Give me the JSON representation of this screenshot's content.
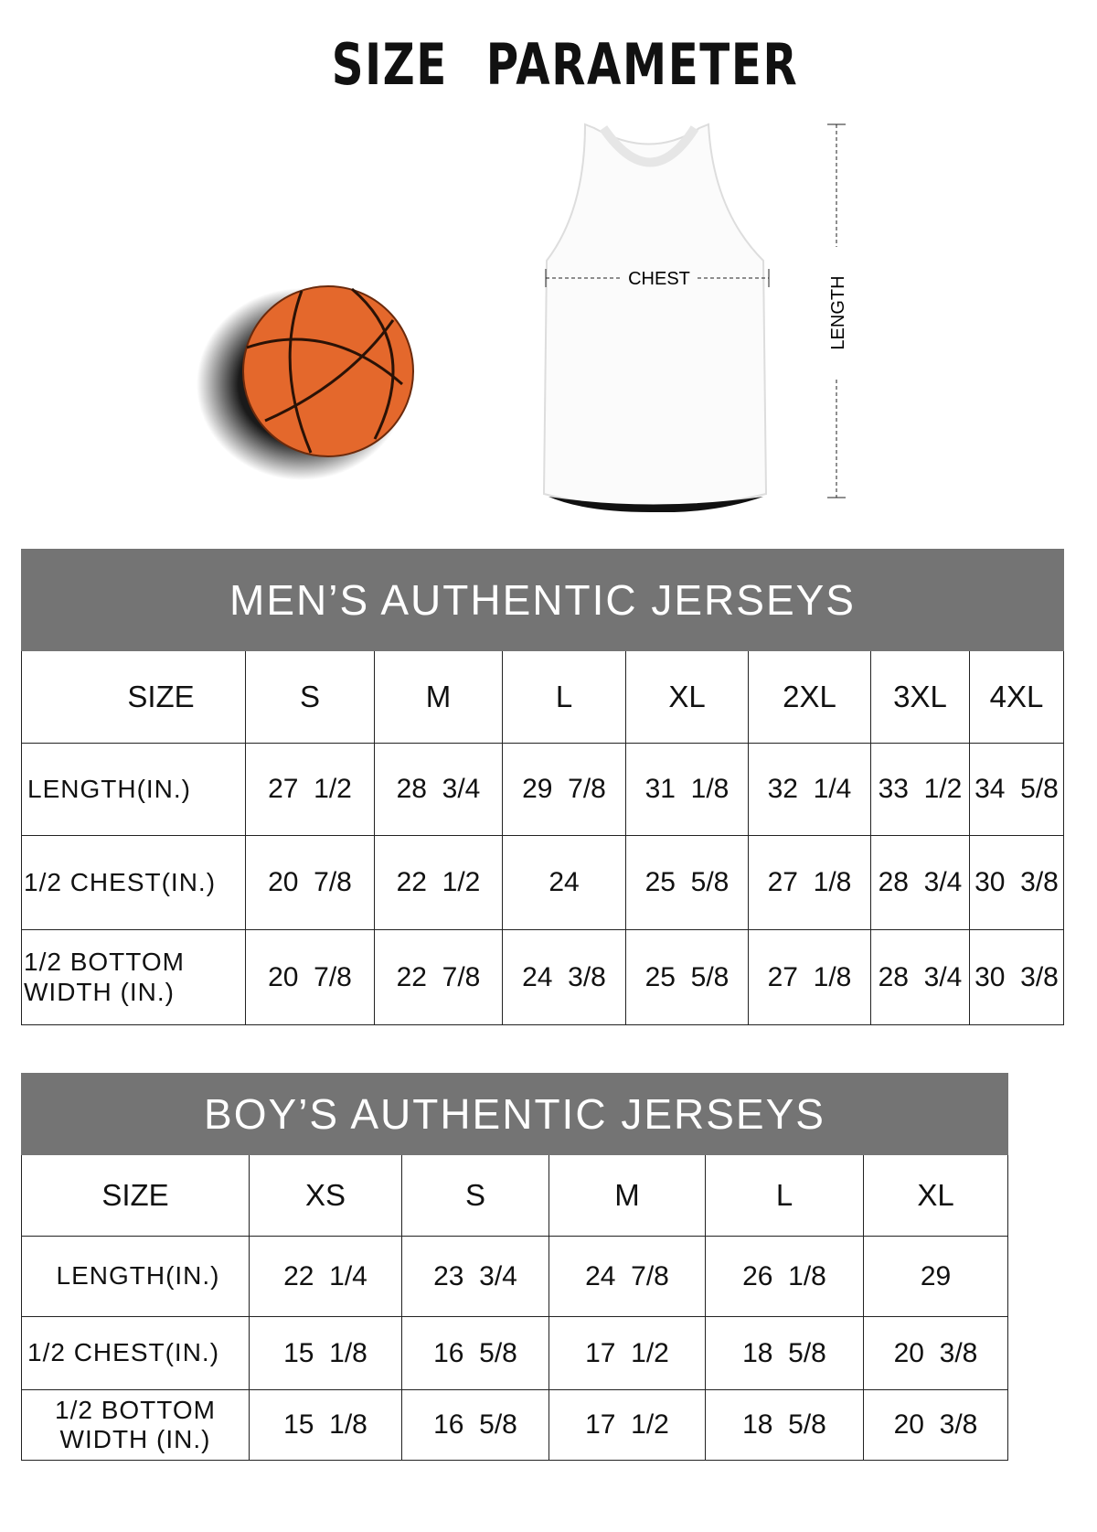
{
  "title": "SIZE PARAMETER",
  "diagram": {
    "chest_label": "CHEST",
    "length_label": "LENGTH"
  },
  "colors": {
    "header_bg": "#747474",
    "ball": "#e4682c"
  },
  "mens": {
    "title": "MEN’S AUTHENTIC JERSEYS",
    "size_label": "SIZE",
    "sizes": [
      "S",
      "M",
      "L",
      "XL",
      "2XL",
      "3XL",
      "4XL"
    ],
    "rows": [
      {
        "label": "LENGTH(IN.)",
        "values": [
          "27  1/2",
          "28  3/4",
          "29  7/8",
          "31  1/8",
          "32  1/4",
          "33  1/2",
          "34  5/8"
        ]
      },
      {
        "label": "1/2 CHEST(IN.)",
        "values": [
          "20  7/8",
          "22  1/2",
          "24",
          "25  5/8",
          "27  1/8",
          "28  3/4",
          "30  3/8"
        ]
      },
      {
        "label": "1/2 BOTTOM WIDTH  (IN.)",
        "values": [
          "20  7/8",
          "22  7/8",
          "24  3/8",
          "25  5/8",
          "27  1/8",
          "28  3/4",
          "30  3/8"
        ]
      }
    ]
  },
  "boys": {
    "title": "BOY’S AUTHENTIC JERSEYS",
    "size_label": "SIZE",
    "sizes": [
      "XS",
      "S",
      "M",
      "L",
      "XL"
    ],
    "rows": [
      {
        "label": "LENGTH(IN.)",
        "values": [
          "22  1/4",
          "23  3/4",
          "24  7/8",
          "26  1/8",
          "29"
        ]
      },
      {
        "label": "1/2 CHEST(IN.)",
        "values": [
          "15  1/8",
          "16  5/8",
          "17  1/2",
          "18  5/8",
          "20  3/8"
        ]
      },
      {
        "label": "1/2 BOTTOM WIDTH  (IN.)",
        "values": [
          "15  1/8",
          "16  5/8",
          "17  1/2",
          "18  5/8",
          "20  3/8"
        ]
      }
    ]
  }
}
